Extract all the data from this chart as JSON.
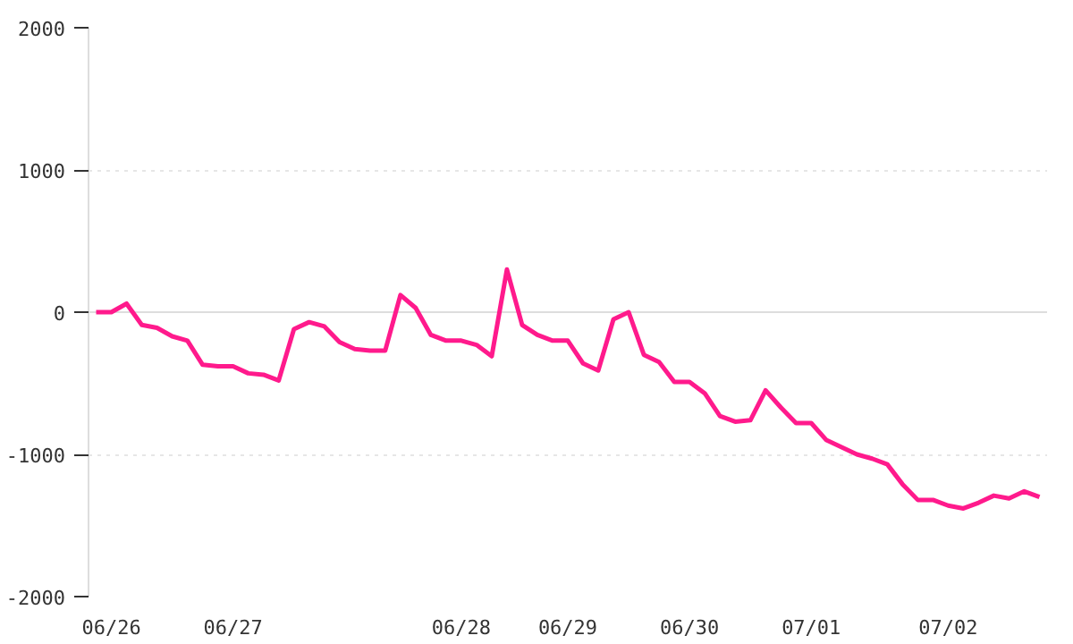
{
  "chart_data": {
    "type": "line",
    "categories": [
      null,
      "06/26",
      null,
      null,
      null,
      null,
      null,
      null,
      null,
      "06/27",
      null,
      null,
      null,
      null,
      null,
      null,
      null,
      null,
      null,
      null,
      null,
      null,
      null,
      null,
      "06/28",
      null,
      null,
      null,
      null,
      null,
      null,
      "06/29",
      null,
      null,
      null,
      null,
      null,
      null,
      null,
      "06/30",
      null,
      null,
      null,
      null,
      null,
      null,
      null,
      "07/01",
      null,
      null,
      null,
      null,
      null,
      null,
      null,
      null,
      "07/02",
      null,
      null,
      null,
      null,
      null,
      null
    ],
    "series": [
      {
        "color": "#ff1a8c",
        "values": [
          0,
          0,
          60,
          -90,
          -110,
          -170,
          -200,
          -370,
          -380,
          -380,
          -430,
          -440,
          -480,
          -120,
          -70,
          -100,
          -210,
          -260,
          -270,
          -270,
          120,
          30,
          -160,
          -200,
          -200,
          -230,
          -310,
          300,
          -90,
          -160,
          -200,
          -200,
          -360,
          -410,
          -50,
          0,
          -300,
          -350,
          -490,
          -490,
          -570,
          -730,
          -770,
          -760,
          -550,
          -670,
          -780,
          -780,
          -900,
          -950,
          -1000,
          -1030,
          -1070,
          -1210,
          -1320,
          -1320,
          -1360,
          -1380,
          -1340,
          -1290,
          -1310,
          -1260,
          -1300
        ]
      }
    ],
    "ylim": [
      -2000,
      2000
    ],
    "yticks": [
      -2000,
      -1000,
      0,
      1000,
      2000
    ],
    "grid": "y",
    "line_style": "solid",
    "marker": "none",
    "ref_lines": [
      {
        "axis": "y",
        "value": 0,
        "color": "#dddddd",
        "line_style": "solid"
      }
    ]
  }
}
